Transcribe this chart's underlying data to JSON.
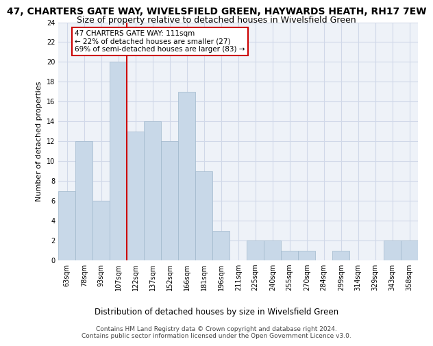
{
  "title1": "47, CHARTERS GATE WAY, WIVELSFIELD GREEN, HAYWARDS HEATH, RH17 7EW",
  "title2": "Size of property relative to detached houses in Wivelsfield Green",
  "xlabel": "Distribution of detached houses by size in Wivelsfield Green",
  "ylabel": "Number of detached properties",
  "categories": [
    "63sqm",
    "78sqm",
    "93sqm",
    "107sqm",
    "122sqm",
    "137sqm",
    "152sqm",
    "166sqm",
    "181sqm",
    "196sqm",
    "211sqm",
    "225sqm",
    "240sqm",
    "255sqm",
    "270sqm",
    "284sqm",
    "299sqm",
    "314sqm",
    "329sqm",
    "343sqm",
    "358sqm"
  ],
  "values": [
    7,
    12,
    6,
    20,
    13,
    14,
    12,
    17,
    9,
    3,
    0,
    2,
    2,
    1,
    1,
    0,
    1,
    0,
    0,
    2,
    2
  ],
  "bar_color": "#c8d8e8",
  "bar_edge_color": "#a0b8cc",
  "vline_x": 3.5,
  "vline_color": "#cc0000",
  "annotation_line1": "47 CHARTERS GATE WAY: 111sqm",
  "annotation_line2": "← 22% of detached houses are smaller (27)",
  "annotation_line3": "69% of semi-detached houses are larger (83) →",
  "annotation_box_color": "#cc0000",
  "annotation_box_facecolor": "white",
  "ylim": [
    0,
    24
  ],
  "yticks": [
    0,
    2,
    4,
    6,
    8,
    10,
    12,
    14,
    16,
    18,
    20,
    22,
    24
  ],
  "grid_color": "#d0d8e8",
  "background_color": "#eef2f8",
  "footer": "Contains HM Land Registry data © Crown copyright and database right 2024.\nContains public sector information licensed under the Open Government Licence v3.0.",
  "title1_fontsize": 10,
  "title2_fontsize": 9,
  "xlabel_fontsize": 8.5,
  "ylabel_fontsize": 8,
  "tick_fontsize": 7,
  "footer_fontsize": 6.5,
  "annot_fontsize": 7.5
}
